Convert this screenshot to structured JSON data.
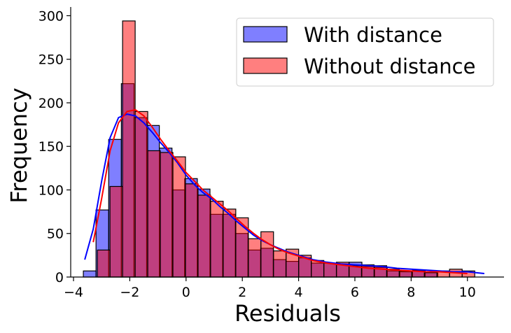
{
  "chart_data": {
    "type": "histogram",
    "xlabel": "Residuals",
    "ylabel": "Frequency",
    "xlim": [
      -4.1,
      11.3
    ],
    "ylim": [
      0,
      310
    ],
    "x_ticks": [
      -4,
      -2,
      0,
      2,
      4,
      6,
      8,
      10
    ],
    "y_ticks": [
      0,
      50,
      100,
      150,
      200,
      250,
      300
    ],
    "legend_position": "top-right",
    "grid": false,
    "series": [
      {
        "name": "With distance",
        "color": "#0000ff",
        "bin_start": -3.65,
        "bin_width": 0.45,
        "counts": [
          7,
          77,
          158,
          222,
          183,
          174,
          148,
          100,
          113,
          101,
          72,
          72,
          50,
          31,
          33,
          20,
          18,
          22,
          16,
          16,
          15,
          17,
          12,
          11,
          7,
          6,
          8,
          6,
          0,
          0,
          0
        ],
        "kde": [
          [
            -3.6,
            20
          ],
          [
            -3.3,
            55
          ],
          [
            -3.0,
            110
          ],
          [
            -2.7,
            160
          ],
          [
            -2.4,
            183
          ],
          [
            -2.1,
            187
          ],
          [
            -1.8,
            185
          ],
          [
            -1.5,
            177
          ],
          [
            -1.2,
            166
          ],
          [
            -0.9,
            154
          ],
          [
            -0.6,
            143
          ],
          [
            -0.3,
            131
          ],
          [
            0,
            117
          ],
          [
            0.3,
            106
          ],
          [
            0.6,
            97
          ],
          [
            0.9,
            90
          ],
          [
            1.2,
            81
          ],
          [
            1.5,
            73
          ],
          [
            1.8,
            64
          ],
          [
            2.1,
            56
          ],
          [
            2.4,
            48
          ],
          [
            2.7,
            42
          ],
          [
            3.0,
            37
          ],
          [
            3.3,
            33
          ],
          [
            3.6,
            29
          ],
          [
            4.0,
            25
          ],
          [
            4.5,
            20
          ],
          [
            5.0,
            17
          ],
          [
            5.5,
            15
          ],
          [
            6.0,
            14
          ],
          [
            6.5,
            13
          ],
          [
            7.0,
            12
          ],
          [
            7.5,
            10
          ],
          [
            8.0,
            9
          ],
          [
            8.5,
            8
          ],
          [
            9.0,
            7
          ],
          [
            9.5,
            6
          ],
          [
            10.0,
            6
          ],
          [
            10.6,
            4
          ]
        ]
      },
      {
        "name": "Without distance",
        "color": "#ff0000",
        "bin_start": -3.15,
        "bin_width": 0.447,
        "counts": [
          31,
          104,
          294,
          190,
          145,
          143,
          138,
          107,
          94,
          87,
          78,
          68,
          44,
          52,
          30,
          32,
          25,
          19,
          16,
          17,
          13,
          14,
          13,
          9,
          7,
          7,
          5,
          7,
          9,
          7,
          0
        ],
        "kde": [
          [
            -3.3,
            40
          ],
          [
            -3.0,
            90
          ],
          [
            -2.7,
            145
          ],
          [
            -2.4,
            177
          ],
          [
            -2.1,
            190
          ],
          [
            -1.8,
            192
          ],
          [
            -1.5,
            185
          ],
          [
            -1.2,
            172
          ],
          [
            -0.9,
            158
          ],
          [
            -0.6,
            145
          ],
          [
            -0.3,
            133
          ],
          [
            0,
            120
          ],
          [
            0.3,
            110
          ],
          [
            0.6,
            100
          ],
          [
            0.9,
            92
          ],
          [
            1.2,
            84
          ],
          [
            1.5,
            76
          ],
          [
            1.8,
            67
          ],
          [
            2.1,
            58
          ],
          [
            2.4,
            50
          ],
          [
            2.7,
            43
          ],
          [
            3.0,
            37
          ],
          [
            3.3,
            32
          ],
          [
            3.6,
            28
          ],
          [
            4.0,
            24
          ],
          [
            4.5,
            19
          ],
          [
            5.0,
            16
          ],
          [
            5.5,
            14
          ],
          [
            6.0,
            12
          ],
          [
            6.5,
            10
          ],
          [
            7.0,
            9
          ],
          [
            7.5,
            8
          ],
          [
            8.0,
            7
          ],
          [
            8.5,
            6
          ],
          [
            9.0,
            6
          ],
          [
            9.5,
            5
          ],
          [
            10.0,
            4
          ]
        ]
      }
    ]
  }
}
